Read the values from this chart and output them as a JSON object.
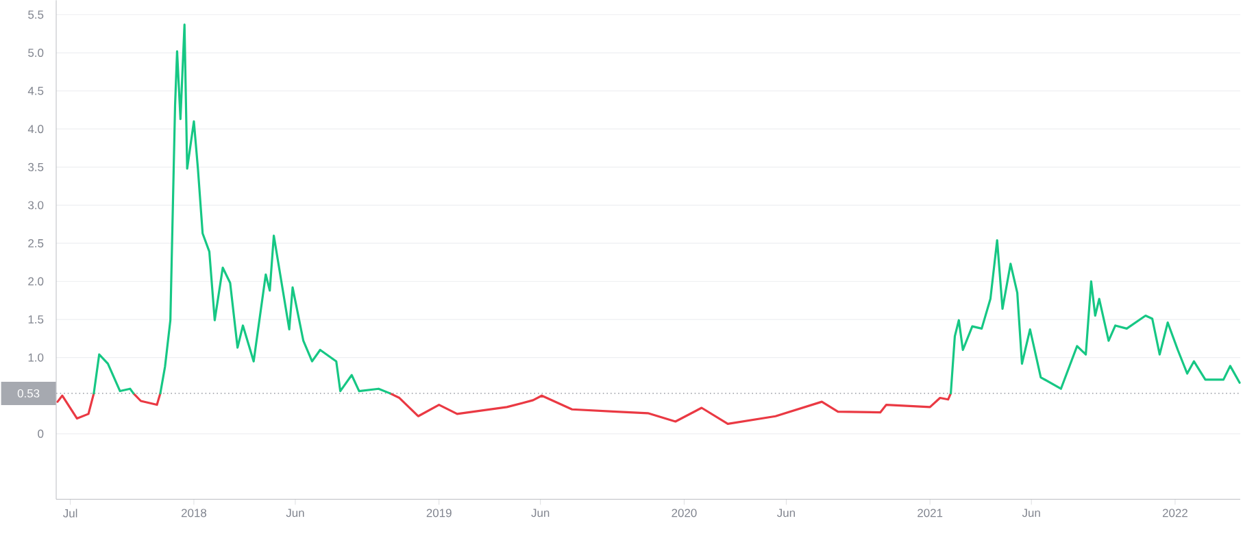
{
  "chart_data": {
    "type": "line",
    "xlim": [
      "2017-06-10",
      "2022-04-08"
    ],
    "xticks": [
      {
        "value": "2017-07-01",
        "label": "Jul"
      },
      {
        "value": "2018-01-01",
        "label": "2018"
      },
      {
        "value": "2018-06-01",
        "label": "Jun"
      },
      {
        "value": "2019-01-01",
        "label": "2019"
      },
      {
        "value": "2019-06-01",
        "label": "Jun"
      },
      {
        "value": "2020-01-01",
        "label": "2020"
      },
      {
        "value": "2020-06-01",
        "label": "Jun"
      },
      {
        "value": "2021-01-01",
        "label": "2021"
      },
      {
        "value": "2021-06-01",
        "label": "Jun"
      },
      {
        "value": "2022-01-01",
        "label": "2022"
      }
    ],
    "ylim": [
      -0.86,
      5.69
    ],
    "yticks": [
      0,
      {
        "value": 1,
        "label": "1.0"
      },
      {
        "value": 1.5,
        "label": "1.5"
      },
      {
        "value": 2,
        "label": "2.0"
      },
      {
        "value": 2.5,
        "label": "2.5"
      },
      {
        "value": 3,
        "label": "3.0"
      },
      {
        "value": 3.5,
        "label": "3.5"
      },
      {
        "value": 4,
        "label": "4.0"
      },
      {
        "value": 4.5,
        "label": "4.5"
      },
      {
        "value": 5,
        "label": "5.0"
      },
      {
        "value": 5.5,
        "label": "5.5"
      }
    ],
    "grid": "y",
    "ref_lines": [
      {
        "axis": "y",
        "value": 0.53,
        "label": "0.53",
        "color": "#a6a9b0",
        "line_style": "dotted"
      }
    ],
    "series": [
      {
        "color": "#ea3943",
        "x": [
          "2017-06-12",
          "2017-06-19",
          "2017-07-11",
          "2017-07-28",
          "2017-08-05",
          "2017-08-20",
          "2017-10-03",
          "2017-10-14",
          "2017-11-07",
          "2017-11-12",
          "2018-03-01",
          "2018-10-20",
          "2018-11-03",
          "2018-12-01",
          "2019-01-01",
          "2019-01-28",
          "2019-04-12",
          "2019-05-21",
          "2019-06-03",
          "2019-07-18",
          "2019-09-22",
          "2019-11-08",
          "2019-12-19",
          "2020-01-27",
          "2020-03-06",
          "2020-05-16",
          "2020-07-24",
          "2020-08-17",
          "2020-10-19",
          "2020-10-28",
          "2021-01-01",
          "2021-01-16",
          "2021-01-28",
          "2021-02-01"
        ],
        "values": [
          0.42,
          0.5,
          0.2,
          0.26,
          0.53,
          null,
          0.53,
          0.43,
          0.38,
          0.53,
          null,
          0.53,
          0.47,
          0.23,
          0.38,
          0.26,
          0.35,
          0.44,
          0.5,
          0.32,
          0.29,
          0.27,
          0.16,
          0.34,
          0.13,
          0.23,
          0.42,
          0.29,
          0.28,
          0.38,
          0.35,
          0.47,
          0.45,
          0.53
        ]
      },
      {
        "color": "#16c784",
        "x": [
          "2017-08-05",
          "2017-08-13",
          "2017-08-26",
          "2017-09-13",
          "2017-09-28",
          "2017-10-03",
          "2017-10-20",
          "2017-11-12",
          "2017-11-19",
          "2017-11-27",
          "2017-12-04",
          "2017-12-07",
          "2017-12-12",
          "2017-12-18",
          "2017-12-22",
          "2018-01-01",
          "2018-01-07",
          "2018-01-14",
          "2018-01-24",
          "2018-02-01",
          "2018-02-13",
          "2018-02-24",
          "2018-03-07",
          "2018-03-15",
          "2018-03-31",
          "2018-04-18",
          "2018-04-24",
          "2018-04-30",
          "2018-05-23",
          "2018-05-28",
          "2018-06-13",
          "2018-06-26",
          "2018-07-08",
          "2018-08-01",
          "2018-08-07",
          "2018-08-24",
          "2018-09-04",
          "2018-10-03",
          "2018-10-20",
          "2019-06-01",
          "2021-02-01",
          "2021-02-07",
          "2021-02-13",
          "2021-02-19",
          "2021-03-05",
          "2021-03-19",
          "2021-04-01",
          "2021-04-11",
          "2021-04-19",
          "2021-05-01",
          "2021-05-11",
          "2021-05-18",
          "2021-05-30",
          "2021-06-15",
          "2021-07-15",
          "2021-08-08",
          "2021-08-21",
          "2021-08-29",
          "2021-09-04",
          "2021-09-10",
          "2021-09-24",
          "2021-10-04",
          "2021-10-21",
          "2021-11-18",
          "2021-11-28",
          "2021-12-09",
          "2021-12-21",
          "2022-01-05",
          "2022-01-19",
          "2022-01-29",
          "2022-02-15",
          "2022-03-14",
          "2022-03-24",
          "2022-04-07"
        ],
        "values": [
          0.53,
          1.04,
          0.92,
          0.56,
          0.59,
          0.53,
          null,
          0.53,
          0.88,
          1.49,
          4.31,
          5.02,
          4.13,
          5.37,
          3.48,
          4.1,
          3.48,
          2.63,
          2.39,
          1.49,
          2.18,
          1.98,
          1.13,
          1.42,
          0.95,
          2.09,
          1.88,
          2.6,
          1.37,
          1.92,
          1.22,
          0.95,
          1.1,
          0.95,
          0.56,
          0.77,
          0.56,
          0.59,
          0.53,
          null,
          0.53,
          1.28,
          1.49,
          1.1,
          1.41,
          1.38,
          1.77,
          2.54,
          1.64,
          2.23,
          1.85,
          0.92,
          1.37,
          0.74,
          0.59,
          1.15,
          1.04,
          2.0,
          1.55,
          1.77,
          1.22,
          1.42,
          1.38,
          1.55,
          1.51,
          1.04,
          1.46,
          1.1,
          0.79,
          0.95,
          0.71,
          0.71,
          0.89,
          0.67
        ]
      }
    ]
  }
}
